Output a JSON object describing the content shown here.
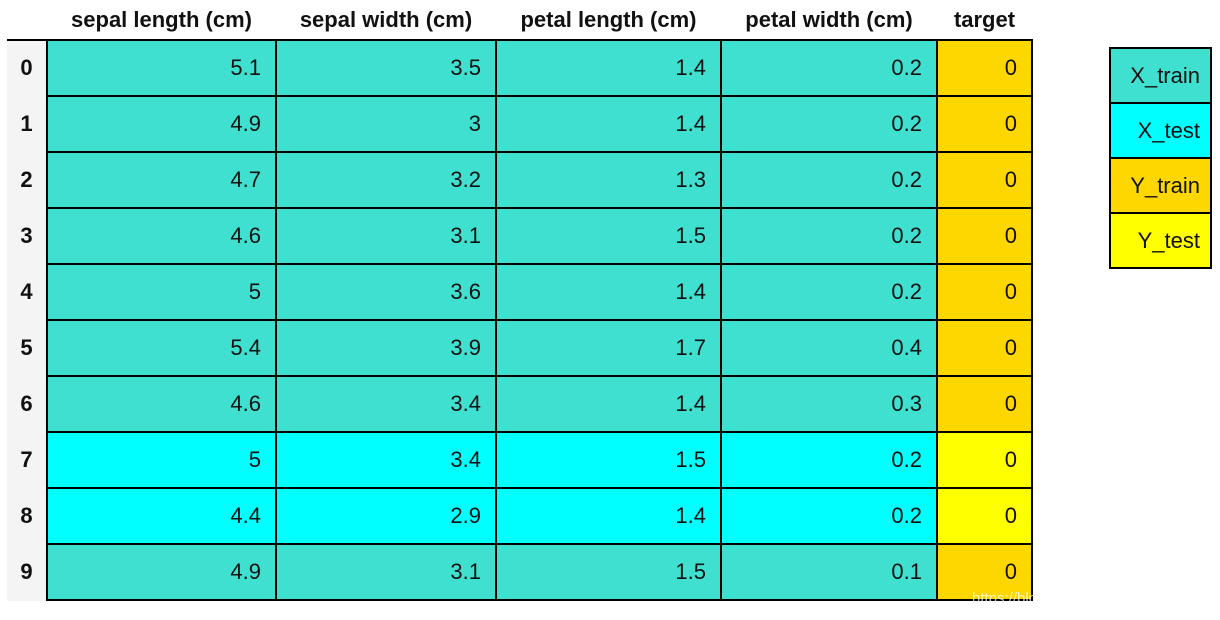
{
  "table": {
    "columns": [
      "sepal length (cm)",
      "sepal width (cm)",
      "petal length (cm)",
      "petal width (cm)",
      "target"
    ],
    "rows": [
      {
        "index": "0",
        "values": [
          "5.1",
          "3.5",
          "1.4",
          "0.2",
          "0"
        ],
        "split": "train"
      },
      {
        "index": "1",
        "values": [
          "4.9",
          "3",
          "1.4",
          "0.2",
          "0"
        ],
        "split": "train"
      },
      {
        "index": "2",
        "values": [
          "4.7",
          "3.2",
          "1.3",
          "0.2",
          "0"
        ],
        "split": "train"
      },
      {
        "index": "3",
        "values": [
          "4.6",
          "3.1",
          "1.5",
          "0.2",
          "0"
        ],
        "split": "train"
      },
      {
        "index": "4",
        "values": [
          "5",
          "3.6",
          "1.4",
          "0.2",
          "0"
        ],
        "split": "train"
      },
      {
        "index": "5",
        "values": [
          "5.4",
          "3.9",
          "1.7",
          "0.4",
          "0"
        ],
        "split": "train"
      },
      {
        "index": "6",
        "values": [
          "4.6",
          "3.4",
          "1.4",
          "0.3",
          "0"
        ],
        "split": "train"
      },
      {
        "index": "7",
        "values": [
          "5",
          "3.4",
          "1.5",
          "0.2",
          "0"
        ],
        "split": "test"
      },
      {
        "index": "8",
        "values": [
          "4.4",
          "2.9",
          "1.4",
          "0.2",
          "0"
        ],
        "split": "test"
      },
      {
        "index": "9",
        "values": [
          "4.9",
          "3.1",
          "1.5",
          "0.1",
          "0"
        ],
        "split": "train"
      }
    ]
  },
  "colors": {
    "X_train": "#40E0D0",
    "X_test": "#00FFFF",
    "Y_train": "#FFD700",
    "Y_test": "#FFFF00"
  },
  "legend": [
    {
      "label": "X_train",
      "color": "#40E0D0"
    },
    {
      "label": "X_test",
      "color": "#00FFFF"
    },
    {
      "label": "Y_train",
      "color": "#FFD700"
    },
    {
      "label": "Y_test",
      "color": "#FFFF00"
    }
  ],
  "watermark": "https://blo"
}
